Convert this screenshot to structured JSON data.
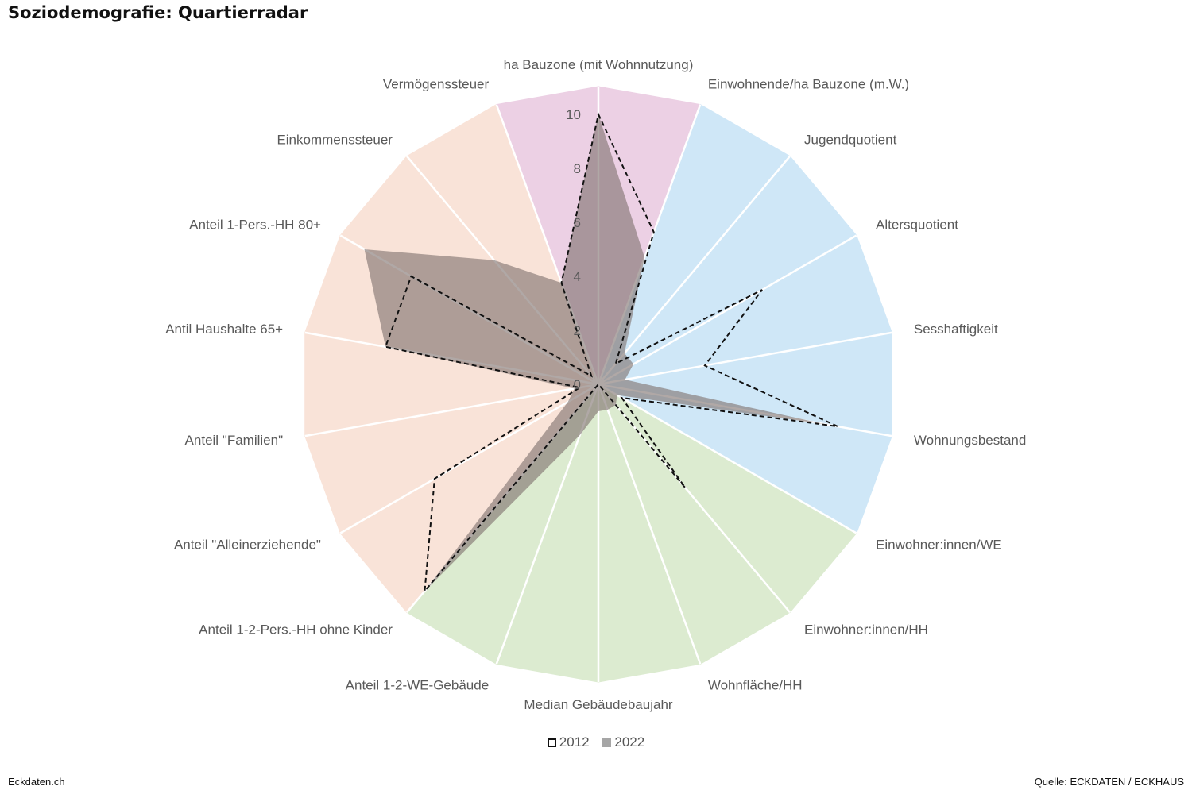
{
  "title": "Soziodemografie: Quartierradar",
  "footer": {
    "left": "Eckdaten.ch",
    "right": "Quelle: ECKDATEN / ECKHAUS"
  },
  "colors": {
    "pink": "#ecd0e4",
    "blue": "#cfe7f7",
    "green": "#dcebd0",
    "peach": "#f9e3d8",
    "series_2022_fill": "#7f7270",
    "series_2012_stroke": "#111111"
  },
  "chart_data": {
    "type": "radar",
    "title": "Soziodemografie: Quartierradar",
    "categories": [
      "ha Bauzone (mit Wohnnutzung)",
      "Einwohnende/ha Bauzone (m.W.)",
      "Jugendquotient",
      "Altersquotient",
      "Sesshaftigkeit",
      "Wohnungsbestand",
      "Einwohner:innen/WE",
      "Einwohner:innen/HH",
      "Wohnfläche/HH",
      "Median Gebäudebaujahr",
      "Anteil 1-2-WE-Gebäude",
      "Anteil 1-2-Pers.-HH ohne Kinder",
      "Anteil \"Alleinerziehende\"",
      "Anteil \"Familien\"",
      "Antil Haushalte 65+",
      "Anteil 1-Pers.-HH 80+",
      "Einkommenssteuer",
      "Vermögenssteuer"
    ],
    "category_groups": [
      "pink",
      "blue",
      "blue",
      "blue",
      "blue",
      "blue",
      "green",
      "green",
      "green",
      "green",
      "green",
      "peach",
      "peach",
      "peach",
      "peach",
      "peach",
      "peach",
      "pink"
    ],
    "series": [
      {
        "name": "2012",
        "style": "dashed-line",
        "values": [
          10,
          6,
          1,
          7,
          4,
          9,
          1,
          5,
          0,
          0,
          0,
          10,
          7,
          0.7,
          8,
          8,
          0.4,
          4
        ]
      },
      {
        "name": "2022",
        "style": "filled",
        "values": [
          10,
          5,
          1.5,
          1.5,
          1,
          8.5,
          0.8,
          1,
          1,
          1,
          2,
          10,
          1.3,
          0.9,
          8,
          10,
          6,
          4
        ]
      }
    ],
    "ticks": [
      0,
      2,
      4,
      6,
      8,
      10
    ],
    "rlim": [
      0,
      10
    ],
    "legend": {
      "position": "bottom",
      "entries": [
        "2012",
        "2022"
      ]
    }
  }
}
